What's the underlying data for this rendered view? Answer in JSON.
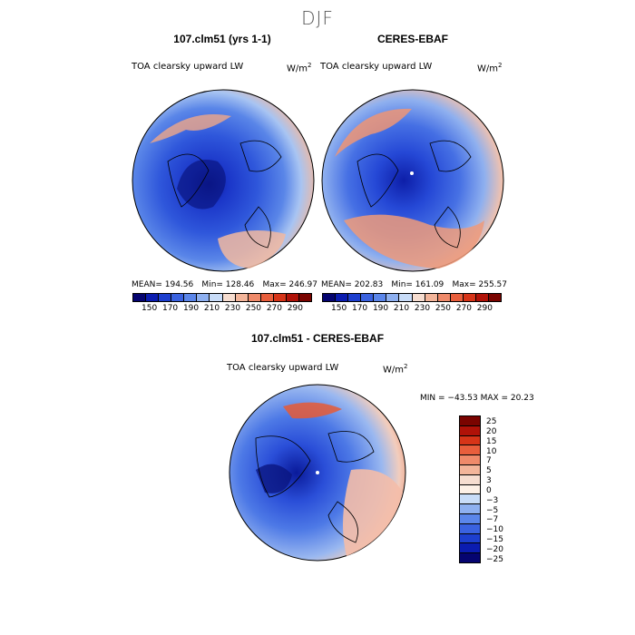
{
  "season": "DJF",
  "panel1": {
    "title": "107.clm51 (yrs 1-1)",
    "variable": "TOA clearsky upward LW",
    "units_base": "W/m",
    "units_exp": "2",
    "mean": "MEAN= 194.56",
    "min": "Min= 128.46",
    "max": "Max= 246.97"
  },
  "panel2": {
    "title": "CERES-EBAF",
    "variable": "TOA clearsky upward LW",
    "units_base": "W/m",
    "units_exp": "2",
    "mean": "MEAN= 202.83",
    "min": "Min= 161.09",
    "max": "Max= 255.57"
  },
  "panel3": {
    "title": "107.clm51 - CERES-EBAF",
    "variable": "TOA clearsky upward LW",
    "units_base": "W/m",
    "units_exp": "2",
    "minmax": "MIN = −43.53 MAX =  20.23"
  },
  "colorbar_top": {
    "colors": [
      "#050470",
      "#0b1cb0",
      "#1d3fcf",
      "#3a62e0",
      "#5b86ea",
      "#8eb0f0",
      "#c8dcf8",
      "#f6ddd0",
      "#f3b59a",
      "#ef8a6a",
      "#e85e3c",
      "#d63418",
      "#b01208",
      "#7a0400"
    ],
    "tick_labels": [
      "150",
      "170",
      "190",
      "210",
      "230",
      "250",
      "270",
      "290"
    ]
  },
  "colorbar_diff": {
    "colors": [
      "#7a0400",
      "#b01208",
      "#d63418",
      "#e85e3c",
      "#ef8a6a",
      "#f3b59a",
      "#f6ddd0",
      "#fdf0e6",
      "#c8dcf8",
      "#8eb0f0",
      "#5b86ea",
      "#3a62e0",
      "#1d3fcf",
      "#0b1cb0",
      "#050470"
    ],
    "tick_labels": [
      "25",
      "20",
      "15",
      "10",
      "7",
      "5",
      "3",
      "0",
      "−3",
      "−5",
      "−7",
      "−10",
      "−15",
      "−20",
      "−25"
    ]
  }
}
